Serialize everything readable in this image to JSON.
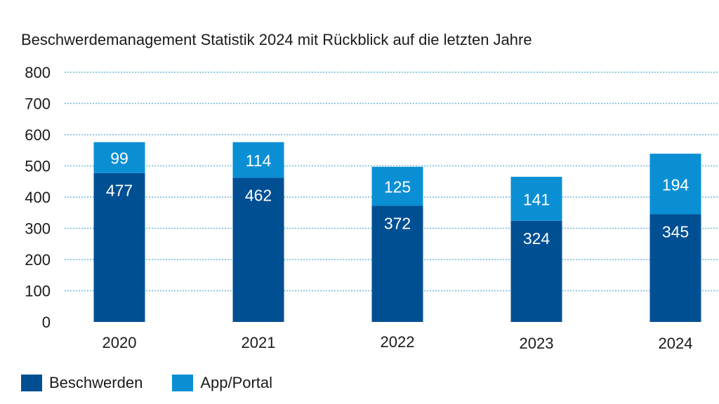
{
  "chart_data": {
    "type": "bar",
    "stacked": true,
    "title": "Beschwerdemanagement Statistik 2024 mit Rückblick auf die letzten Jahre",
    "categories": [
      "2020",
      "2021",
      "2022",
      "2023",
      "2024"
    ],
    "series": [
      {
        "name": "Beschwerden",
        "color": "#004f93",
        "values": [
          477,
          462,
          372,
          324,
          345
        ]
      },
      {
        "name": "App/Portal",
        "color": "#0b8fd4",
        "values": [
          99,
          114,
          125,
          141,
          194
        ]
      }
    ],
    "y_ticks": [
      "0",
      "100",
      "200",
      "300",
      "400",
      "500",
      "600",
      "700",
      "800"
    ],
    "ylim": [
      0,
      800
    ],
    "xlabel": "",
    "ylabel": "",
    "grid": true,
    "legend_position": "bottom-left"
  }
}
